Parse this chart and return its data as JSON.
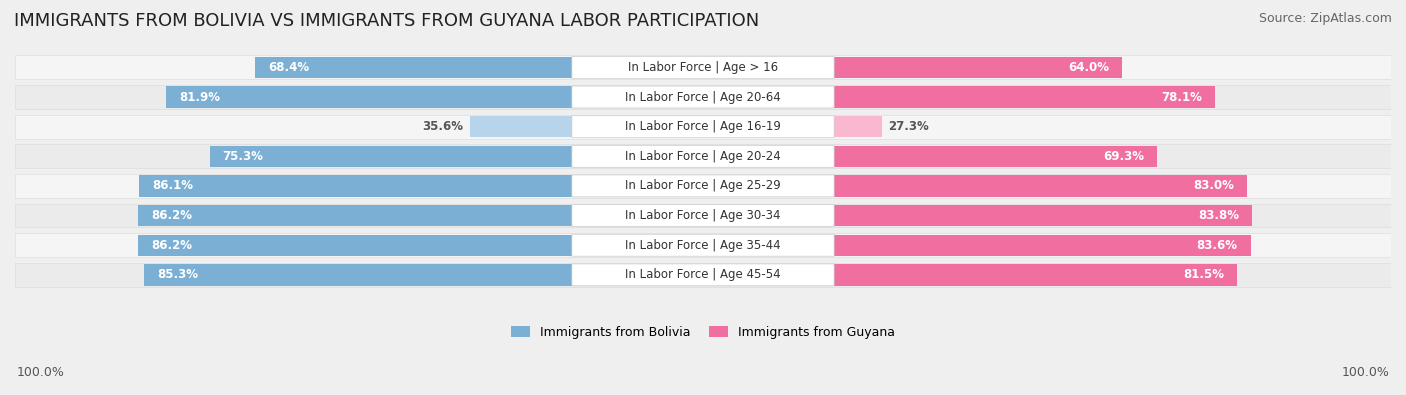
{
  "title": "IMMIGRANTS FROM BOLIVIA VS IMMIGRANTS FROM GUYANA LABOR PARTICIPATION",
  "source": "Source: ZipAtlas.com",
  "categories": [
    "In Labor Force | Age > 16",
    "In Labor Force | Age 20-64",
    "In Labor Force | Age 16-19",
    "In Labor Force | Age 20-24",
    "In Labor Force | Age 25-29",
    "In Labor Force | Age 30-34",
    "In Labor Force | Age 35-44",
    "In Labor Force | Age 45-54"
  ],
  "bolivia_values": [
    68.4,
    81.9,
    35.6,
    75.3,
    86.1,
    86.2,
    86.2,
    85.3
  ],
  "guyana_values": [
    64.0,
    78.1,
    27.3,
    69.3,
    83.0,
    83.8,
    83.6,
    81.5
  ],
  "bolivia_color_strong": "#7bafd4",
  "bolivia_color_light": "#b8d4eb",
  "guyana_color_strong": "#f06fa0",
  "guyana_color_light": "#f9b8d0",
  "background_color": "#efefef",
  "row_bg_even": "#f5f5f5",
  "row_bg_odd": "#ebebeb",
  "label_bg_color": "#ffffff",
  "max_value": 100.0,
  "legend_bolivia": "Immigrants from Bolivia",
  "legend_guyana": "Immigrants from Guyana",
  "title_fontsize": 13,
  "source_fontsize": 9,
  "label_fontsize": 8.5,
  "value_fontsize": 8.5,
  "footer_fontsize": 9,
  "threshold": 50
}
